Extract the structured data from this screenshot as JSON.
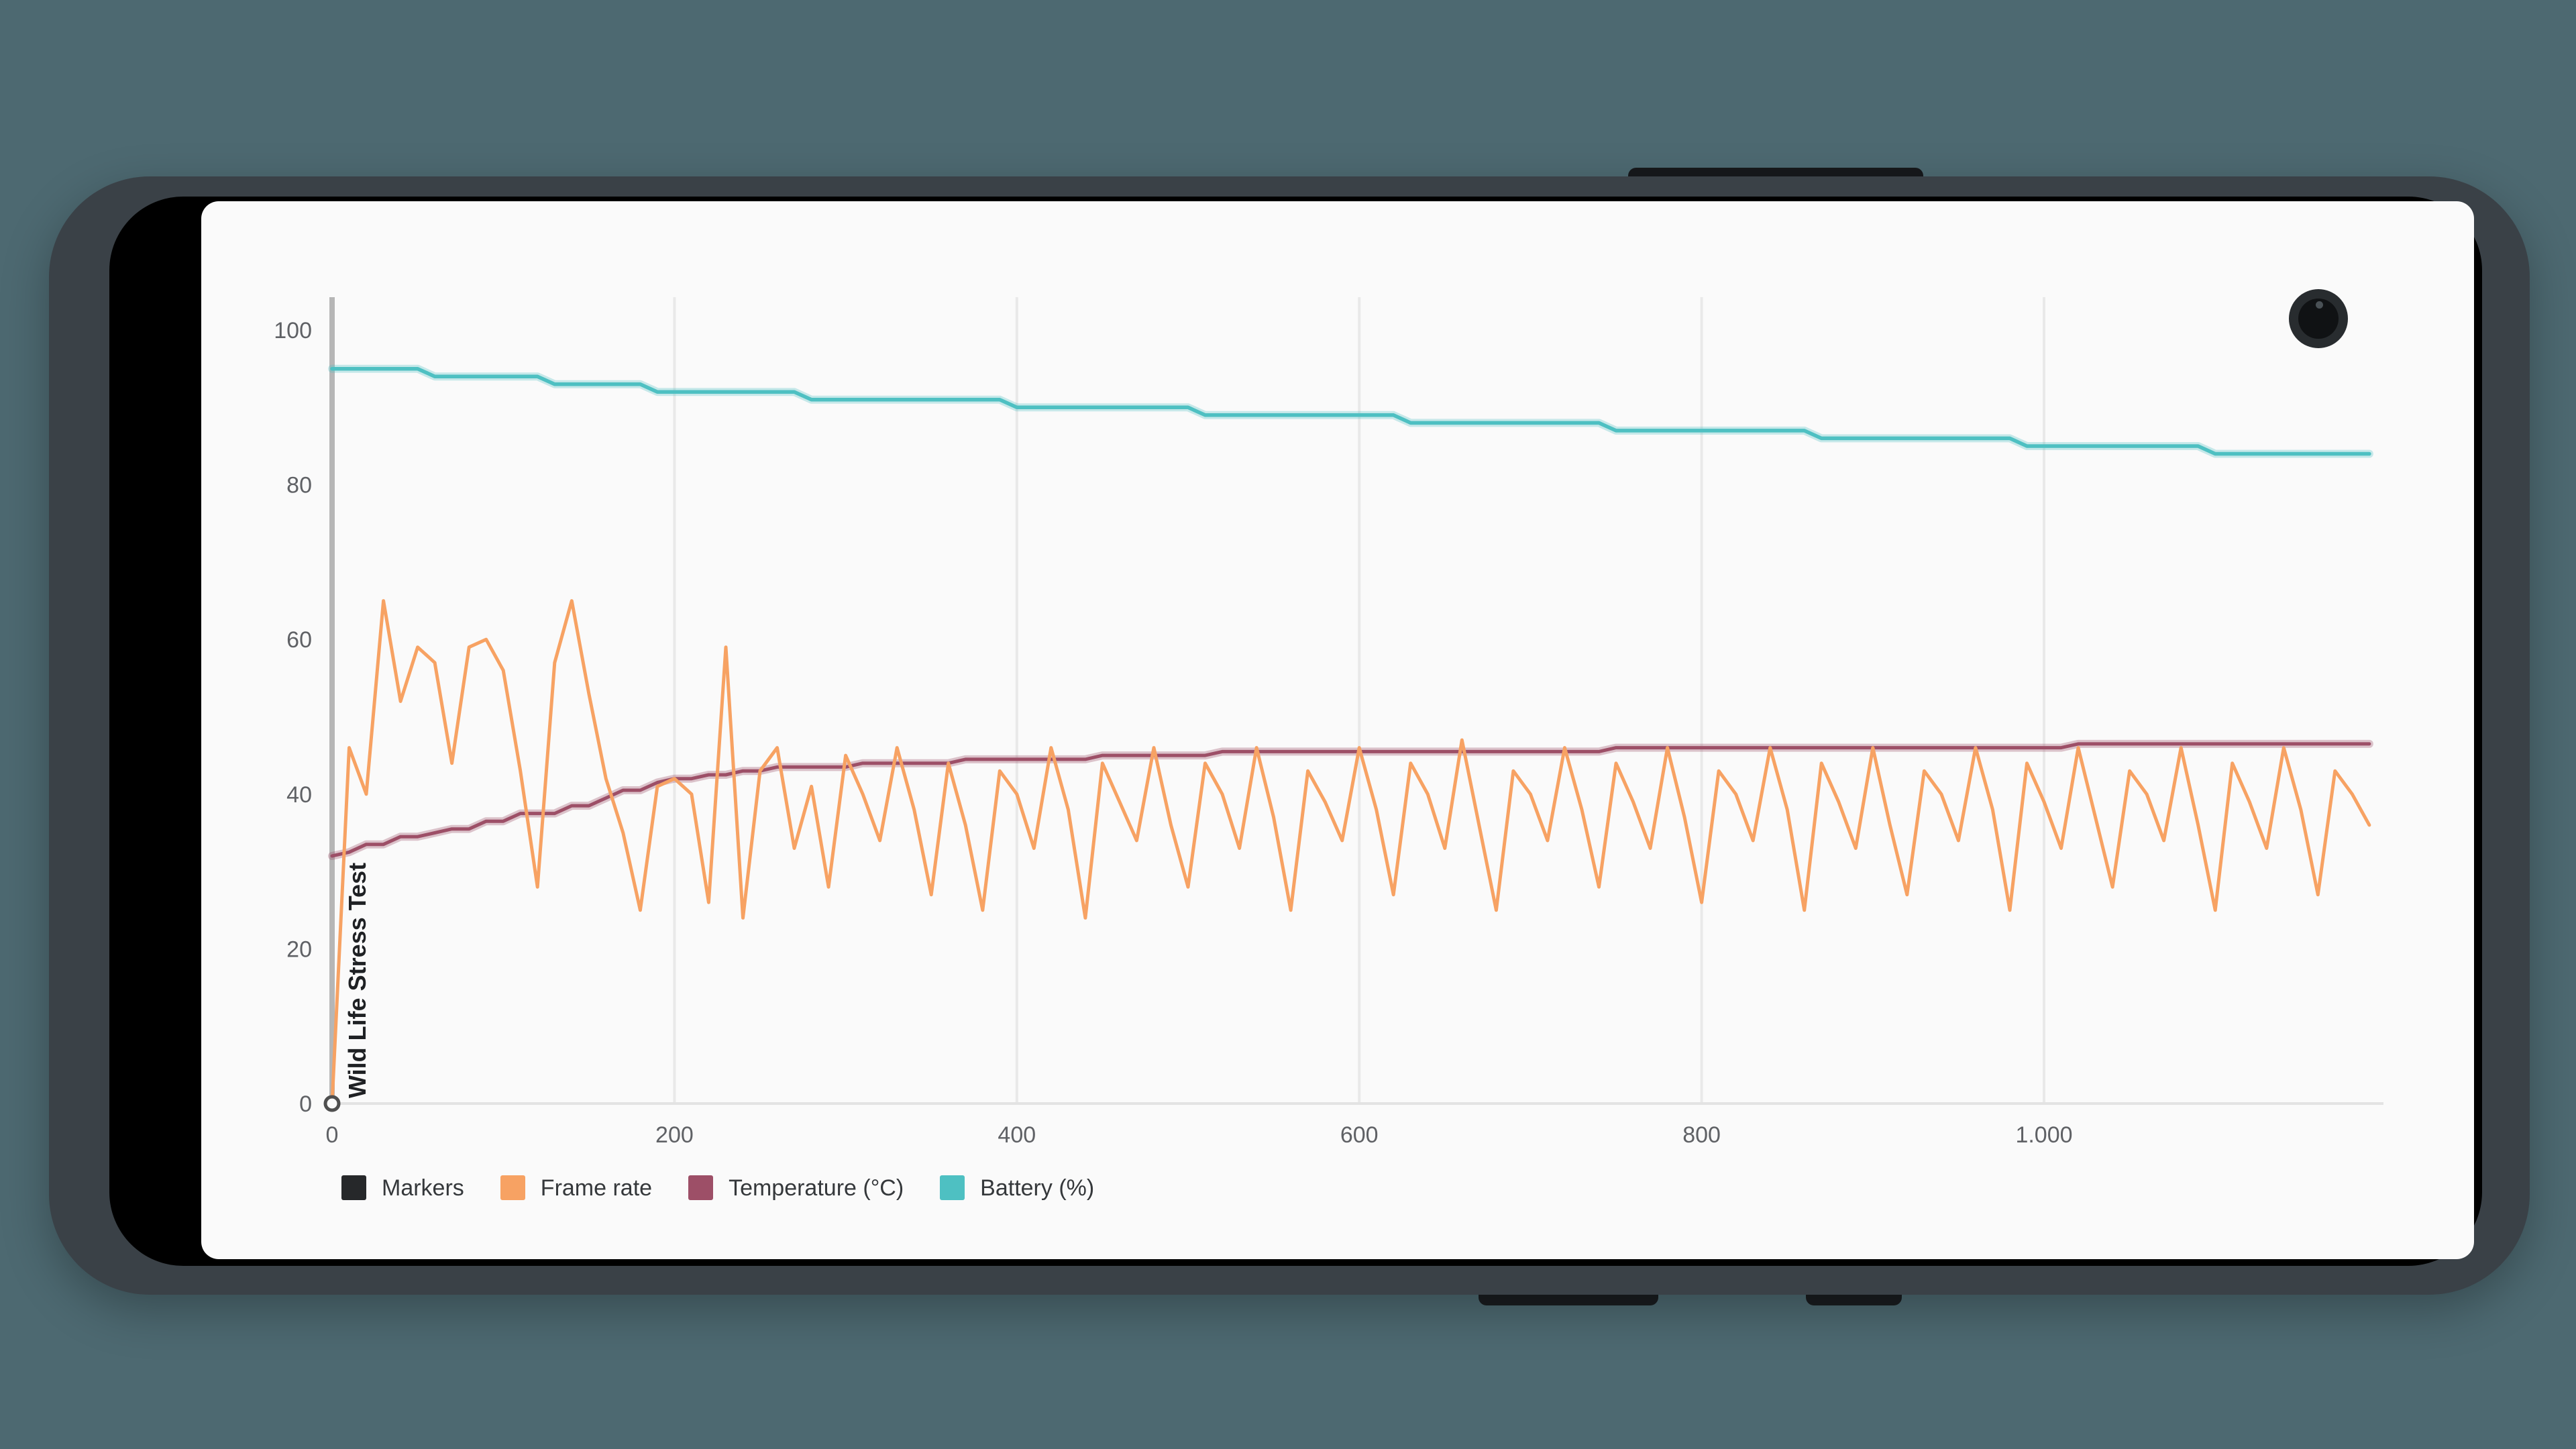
{
  "device": {
    "background_color": "#4d6971",
    "frame_color": "#3a4147",
    "camera": "punch-hole-camera"
  },
  "chart_data": {
    "type": "line",
    "title": "",
    "xlabel": "",
    "ylabel": "",
    "x_step": 10,
    "x_range": [
      0,
      1190
    ],
    "ylim": [
      0,
      104
    ],
    "grid": "vertical-only",
    "legend_position": "bottom-left",
    "x_tick_labels": [
      "0",
      "200",
      "400",
      "600",
      "800",
      "1.000"
    ],
    "x_tick_values": [
      0,
      200,
      400,
      600,
      800,
      1000
    ],
    "y_ticks": [
      100,
      80,
      60,
      40,
      20,
      0
    ],
    "marker": {
      "x": 0,
      "label": "Wild Life Stress Test",
      "line_color": "#b6b6b6",
      "point_x": 0,
      "point_y": 0,
      "label_color": "#1f2124"
    },
    "series": [
      {
        "name": "Markers",
        "color": "#26282a",
        "kind": "marker"
      },
      {
        "name": "Frame rate",
        "color": "#f7a263",
        "kind": "line",
        "values": [
          0,
          46,
          40,
          65,
          52,
          59,
          57,
          44,
          59,
          60,
          56,
          43,
          28,
          57,
          65,
          53,
          42,
          35,
          25,
          41,
          42,
          40,
          26,
          59,
          24,
          43,
          46,
          33,
          41,
          28,
          45,
          40,
          34,
          46,
          38,
          27,
          44,
          36,
          25,
          43,
          40,
          33,
          46,
          38,
          24,
          44,
          39,
          34,
          46,
          36,
          28,
          44,
          40,
          33,
          46,
          37,
          25,
          43,
          39,
          34,
          46,
          38,
          27,
          44,
          40,
          33,
          47,
          36,
          25,
          43,
          40,
          34,
          46,
          38,
          28,
          44,
          39,
          33,
          46,
          37,
          26,
          43,
          40,
          34,
          46,
          38,
          25,
          44,
          39,
          33,
          46,
          36,
          27,
          43,
          40,
          34,
          46,
          38,
          25,
          44,
          39,
          33,
          46,
          37,
          28,
          43,
          40,
          34,
          46,
          36,
          25,
          44,
          39,
          33,
          46,
          38,
          27,
          43,
          40,
          36
        ]
      },
      {
        "name": "Temperature (°C)",
        "color": "#9d4f67",
        "halo": "rgba(157,79,103,0.32)",
        "kind": "line",
        "values": [
          32,
          32.5,
          33.5,
          33.5,
          34.5,
          34.5,
          35,
          35.5,
          35.5,
          36.5,
          36.5,
          37.5,
          37.5,
          37.5,
          38.5,
          38.5,
          39.5,
          40.5,
          40.5,
          41.5,
          42,
          42,
          42.5,
          42.5,
          43,
          43,
          43.5,
          43.5,
          43.5,
          43.5,
          43.5,
          44,
          44,
          44,
          44,
          44,
          44,
          44.5,
          44.5,
          44.5,
          44.5,
          44.5,
          44.5,
          44.5,
          44.5,
          45,
          45,
          45,
          45,
          45,
          45,
          45,
          45.5,
          45.5,
          45.5,
          45.5,
          45.5,
          45.5,
          45.5,
          45.5,
          45.5,
          45.5,
          45.5,
          45.5,
          45.5,
          45.5,
          45.5,
          45.5,
          45.5,
          45.5,
          45.5,
          45.5,
          45.5,
          45.5,
          45.5,
          46,
          46,
          46,
          46,
          46,
          46,
          46,
          46,
          46,
          46,
          46,
          46,
          46,
          46,
          46,
          46,
          46,
          46,
          46,
          46,
          46,
          46,
          46,
          46,
          46,
          46,
          46,
          46.5,
          46.5,
          46.5,
          46.5,
          46.5,
          46.5,
          46.5,
          46.5,
          46.5,
          46.5,
          46.5,
          46.5,
          46.5,
          46.5,
          46.5,
          46.5,
          46.5,
          46.5
        ]
      },
      {
        "name": "Battery (%)",
        "color": "#4ec0c2",
        "halo": "rgba(78,192,194,0.30)",
        "kind": "line",
        "values": [
          95,
          95,
          95,
          95,
          95,
          95,
          94,
          94,
          94,
          94,
          94,
          94,
          94,
          93,
          93,
          93,
          93,
          93,
          93,
          92,
          92,
          92,
          92,
          92,
          92,
          92,
          92,
          92,
          91,
          91,
          91,
          91,
          91,
          91,
          91,
          91,
          91,
          91,
          91,
          91,
          90,
          90,
          90,
          90,
          90,
          90,
          90,
          90,
          90,
          90,
          90,
          89,
          89,
          89,
          89,
          89,
          89,
          89,
          89,
          89,
          89,
          89,
          89,
          88,
          88,
          88,
          88,
          88,
          88,
          88,
          88,
          88,
          88,
          88,
          88,
          87,
          87,
          87,
          87,
          87,
          87,
          87,
          87,
          87,
          87,
          87,
          87,
          86,
          86,
          86,
          86,
          86,
          86,
          86,
          86,
          86,
          86,
          86,
          86,
          85,
          85,
          85,
          85,
          85,
          85,
          85,
          85,
          85,
          85,
          85,
          84,
          84,
          84,
          84,
          84,
          84,
          84,
          84,
          84,
          84
        ]
      }
    ],
    "axis_style": {
      "grid_color": "#e9e9e9",
      "axis_line_color": "#e3e3e3",
      "tick_label_color": "#5f6165"
    }
  },
  "legend": {
    "items": [
      {
        "label": "Markers"
      },
      {
        "label": "Frame rate"
      },
      {
        "label": "Temperature (°C)"
      },
      {
        "label": "Battery (%)"
      }
    ]
  }
}
